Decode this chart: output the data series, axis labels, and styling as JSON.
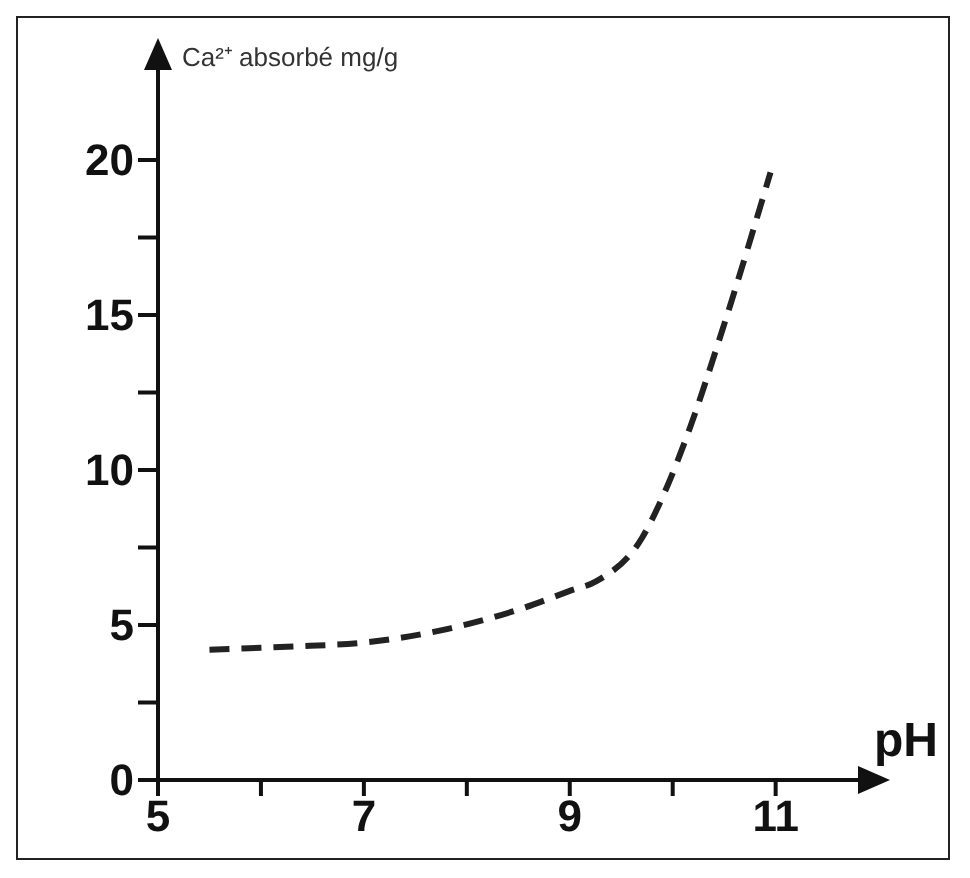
{
  "chart_data": {
    "type": "line",
    "xlabel": "pH",
    "ylabel": "Ca²⁺ absorbé mg/g",
    "xlim": [
      5,
      11.8
    ],
    "ylim": [
      0,
      22
    ],
    "xticks": [
      5,
      {
        "value": 6,
        "label": null
      },
      7,
      {
        "value": 8,
        "label": null
      },
      9,
      {
        "value": 10,
        "label": null
      },
      11
    ],
    "yticks": [
      0,
      {
        "value": 2.5,
        "label": null
      },
      5,
      {
        "value": 7.5,
        "label": null
      },
      10,
      {
        "value": 12.5,
        "label": null
      },
      15,
      {
        "value": 17.5,
        "label": null
      },
      20
    ],
    "x": [
      5.5,
      6.25,
      7.05,
      7.85,
      8.55,
      9,
      9.25,
      9.7,
      9.95,
      10.15,
      10.5,
      10.95
    ],
    "series": [
      {
        "color": "#222222",
        "values": [
          4.2,
          4.3,
          4.45,
          4.9,
          5.55,
          6.1,
          6.4,
          7.8,
          9.5,
          11.2,
          14.7,
          19.6
        ]
      }
    ],
    "grid": false,
    "legend": false,
    "marker": "none",
    "line_style": "dashed"
  }
}
